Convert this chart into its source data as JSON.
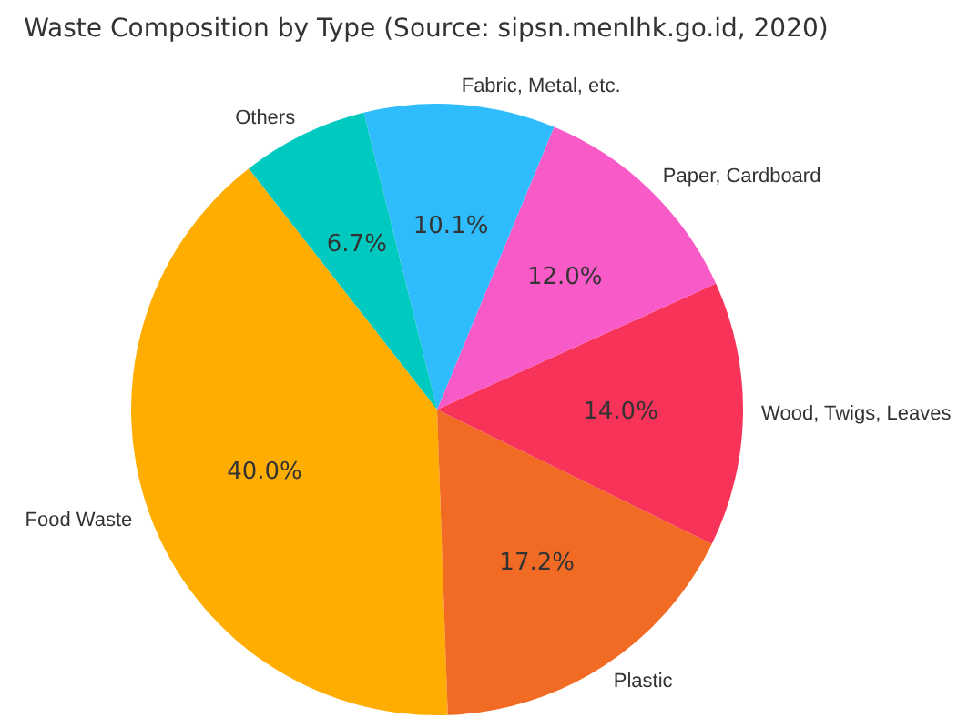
{
  "chart_data": {
    "type": "pie",
    "title": "Waste Composition by Type (Source: sipsn.menlhk.go.id, 2020)",
    "categories": [
      "Food Waste",
      "Plastic",
      "Wood, Twigs, Leaves",
      "Paper, Cardboard",
      "Fabric, Metal, etc.",
      "Others"
    ],
    "values": [
      40.0,
      17.2,
      14.0,
      12.0,
      10.1,
      6.7
    ],
    "colors": [
      "#ffad00",
      "#f26b24",
      "#f7335a",
      "#f85bc7",
      "#2ebcfd",
      "#00c9c0"
    ],
    "value_labels": [
      "40.0%",
      "17.2%",
      "14.0%",
      "12.0%",
      "10.1%",
      "6.7%"
    ]
  }
}
